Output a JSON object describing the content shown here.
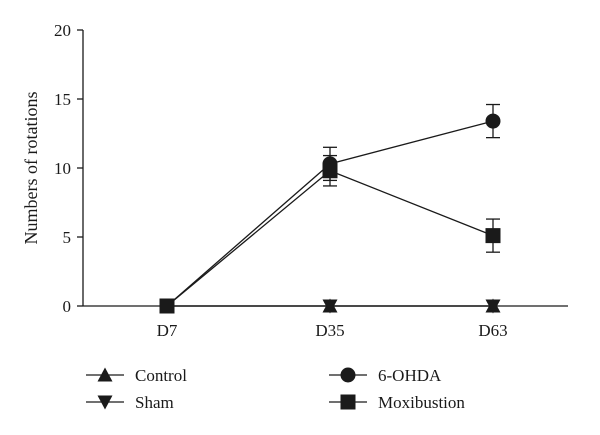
{
  "chart_data": {
    "type": "line",
    "title": "",
    "xlabel": "",
    "ylabel": "Numbers of rotations",
    "categories": [
      "D7",
      "D35",
      "D63"
    ],
    "ylim": [
      0,
      20
    ],
    "yticks": [
      "0",
      "5",
      "10",
      "15",
      "20"
    ],
    "grid": false,
    "legend_position": "bottom",
    "series": [
      {
        "name": "Control",
        "marker": "triangle-up",
        "values": [
          0,
          0,
          0
        ],
        "errors": [
          0,
          0,
          0
        ]
      },
      {
        "name": "Sham",
        "marker": "triangle-down",
        "values": [
          0,
          0,
          0
        ],
        "errors": [
          0,
          0,
          0
        ]
      },
      {
        "name": "6-OHDA",
        "marker": "circle",
        "values": [
          0,
          10.3,
          13.4
        ],
        "errors": [
          0,
          1.2,
          1.2
        ]
      },
      {
        "name": "Moxibustion",
        "marker": "square",
        "values": [
          0,
          9.8,
          5.1
        ],
        "errors": [
          0,
          1.1,
          1.2
        ]
      }
    ],
    "colors": {
      "line": "#1a1a1a",
      "marker": "#1a1a1a"
    }
  }
}
